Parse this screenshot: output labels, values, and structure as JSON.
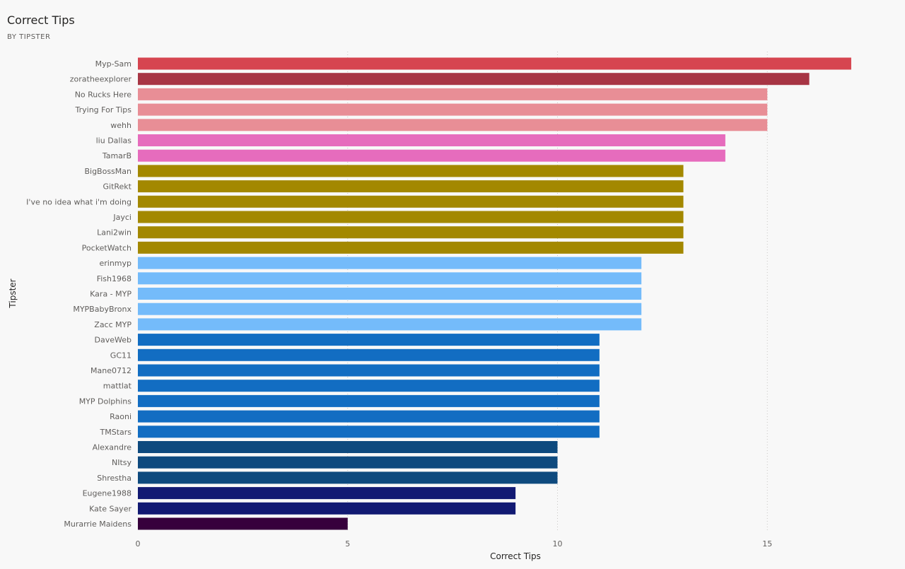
{
  "title": "Correct Tips",
  "subtitle": "BY TIPSTER",
  "chart_data": {
    "type": "bar",
    "orientation": "horizontal",
    "title": "Correct Tips",
    "subtitle": "BY TIPSTER",
    "xlabel": "Correct Tips",
    "ylabel": "Tipster",
    "xlim": [
      0,
      18
    ],
    "xticks": [
      0,
      5,
      10,
      15
    ],
    "grid": true,
    "categories": [
      "Myp-Sam",
      "zoratheexplorer",
      "No Rucks Here",
      "Trying For Tips",
      "wehh",
      "liu Dallas",
      "TamarB",
      "BigBossMan",
      "GitRekt",
      "I've no idea what i'm doing",
      "Jayci",
      "Lani2win",
      "PocketWatch",
      "erinmyp",
      "Fish1968",
      "Kara - MYP",
      "MYPBabyBronx",
      "Zacc MYP",
      "DaveWeb",
      "GC11",
      "Mane0712",
      "mattlat",
      "MYP Dolphins",
      "Raoni",
      "TMStars",
      "Alexandre",
      "NItsy",
      "Shrestha",
      "Eugene1988",
      "Kate Sayer",
      "Murarrie Maidens"
    ],
    "values": [
      17,
      16,
      15,
      15,
      15,
      14,
      14,
      13,
      13,
      13,
      13,
      13,
      13,
      12,
      12,
      12,
      12,
      12,
      11,
      11,
      11,
      11,
      11,
      11,
      11,
      10,
      10,
      10,
      9,
      9,
      5
    ],
    "colors": [
      "#d64550",
      "#a73544",
      "#e88e96",
      "#e88e96",
      "#e88e96",
      "#e66cbd",
      "#e66cbd",
      "#a38800",
      "#a38800",
      "#a38800",
      "#a38800",
      "#a38800",
      "#a38800",
      "#74bbfa",
      "#74bbfa",
      "#74bbfa",
      "#74bbfa",
      "#74bbfa",
      "#126dc2",
      "#126dc2",
      "#126dc2",
      "#126dc2",
      "#126dc2",
      "#126dc2",
      "#126dc2",
      "#0e4a7e",
      "#0e4a7e",
      "#0e4a7e",
      "#121a73",
      "#121a73",
      "#37003c"
    ]
  }
}
